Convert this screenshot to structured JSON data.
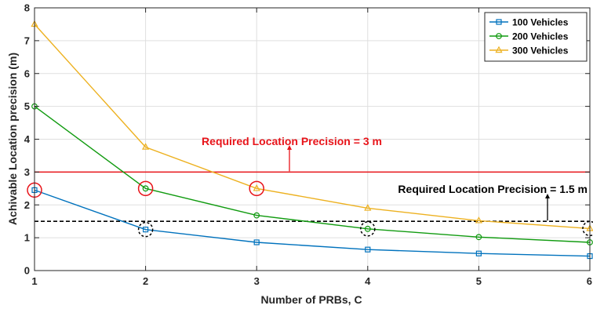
{
  "chart_data": {
    "type": "line",
    "xlabel": "Number of PRBs, C",
    "ylabel": "Achivable Location precision (m)",
    "x": [
      1,
      2,
      3,
      4,
      5,
      6
    ],
    "xlim": [
      1,
      6
    ],
    "ylim": [
      0,
      8
    ],
    "xticks": [
      "1",
      "2",
      "3",
      "4",
      "5",
      "6"
    ],
    "yticks": [
      "0",
      "1",
      "2",
      "3",
      "4",
      "5",
      "6",
      "7",
      "8"
    ],
    "grid": true,
    "legend_position": "top-right",
    "series": [
      {
        "name": "100 Vehicles",
        "color": "#0072bd",
        "marker": "square",
        "values": [
          2.45,
          1.25,
          0.86,
          0.64,
          0.52,
          0.44
        ]
      },
      {
        "name": "200 Vehicles",
        "color": "#119b10",
        "marker": "circle",
        "values": [
          5.0,
          2.5,
          1.68,
          1.27,
          1.02,
          0.86
        ]
      },
      {
        "name": "300 Vehicles",
        "color": "#edb120",
        "marker": "triangle",
        "values": [
          7.5,
          3.76,
          2.5,
          1.9,
          1.52,
          1.28
        ]
      }
    ],
    "reference_lines": [
      {
        "label": "Required Location Precision = 3 m",
        "y": 3,
        "color": "#e8141a",
        "style": "solid"
      },
      {
        "label": "Required Location Precision = 1.5 m",
        "y": 1.5,
        "color": "#000000",
        "style": "dashed"
      }
    ],
    "highlight_circles": [
      {
        "x": 1,
        "y": 2.45,
        "color": "#e8141a",
        "style": "solid"
      },
      {
        "x": 2,
        "y": 2.5,
        "color": "#e8141a",
        "style": "solid"
      },
      {
        "x": 3,
        "y": 2.5,
        "color": "#e8141a",
        "style": "solid"
      },
      {
        "x": 2,
        "y": 1.25,
        "color": "#000000",
        "style": "dashed"
      },
      {
        "x": 4,
        "y": 1.27,
        "color": "#000000",
        "style": "dashed"
      },
      {
        "x": 6,
        "y": 1.28,
        "color": "#000000",
        "style": "dashed"
      }
    ]
  }
}
